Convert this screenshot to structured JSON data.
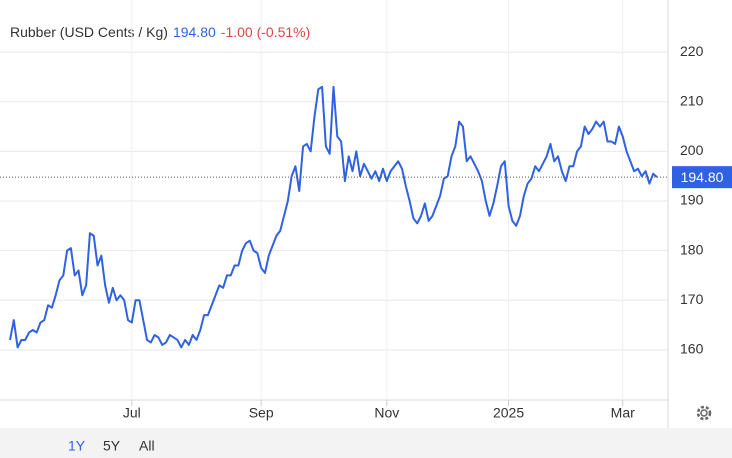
{
  "chart_data": {
    "type": "line",
    "title": "Rubber (USD Cents / Kg)",
    "price": "194.80",
    "change": "-1.00 (-0.51%)",
    "series": [
      {
        "name": "Rubber",
        "color": "#2f62e3",
        "values": [
          162,
          166,
          160.5,
          162,
          162,
          163.5,
          164,
          163.5,
          165.5,
          166,
          169,
          168.5,
          171,
          174,
          175,
          180,
          180.5,
          175,
          176,
          171,
          173,
          183.5,
          183,
          177,
          179,
          173,
          169.5,
          172.5,
          170,
          171,
          170,
          166,
          165.5,
          170,
          170,
          166,
          162,
          161.5,
          163,
          162.5,
          161,
          161.5,
          163,
          162.5,
          162,
          160.5,
          162,
          161,
          163,
          162,
          164,
          167,
          167,
          169,
          171,
          173,
          172.5,
          175,
          175,
          177,
          177,
          180,
          181.5,
          182,
          180,
          179.5,
          176.5,
          175.5,
          179,
          181,
          183,
          184,
          187,
          190,
          195,
          197,
          192,
          201,
          201.5,
          200,
          207,
          212.5,
          213,
          201,
          199.5,
          213,
          203,
          202,
          194,
          199,
          196,
          200,
          195,
          197.5,
          196,
          194.5,
          196,
          194,
          196.5,
          194,
          196,
          197,
          198,
          196.5,
          193,
          190,
          186.5,
          185.5,
          187,
          189.5,
          186,
          187,
          189,
          191,
          194.5,
          195,
          199,
          201,
          206,
          205,
          198,
          199,
          197.5,
          196,
          194,
          190,
          187,
          189.5,
          193,
          197,
          198,
          189,
          186,
          185,
          187,
          191,
          193.5,
          194.5,
          197,
          196,
          197.5,
          199,
          201.5,
          198,
          199,
          196,
          194,
          197,
          197,
          200,
          201,
          205,
          203.5,
          204.5,
          206,
          205,
          206,
          202,
          202,
          201.5,
          205,
          203,
          200,
          198,
          196,
          196.5,
          195,
          196,
          193.5,
          195.5,
          194.8
        ]
      }
    ],
    "xlim": [
      0,
      170
    ],
    "xticks": [
      {
        "value": 32,
        "label": "Jul"
      },
      {
        "value": 66,
        "label": "Sep"
      },
      {
        "value": 99,
        "label": "Nov"
      },
      {
        "value": 131,
        "label": "2025"
      },
      {
        "value": 161,
        "label": "Mar"
      }
    ],
    "ylim": [
      149.9,
      230.5
    ],
    "yticks": [
      160,
      170,
      180,
      190,
      200,
      210,
      220
    ],
    "grid": true,
    "range_buttons": [
      "1Y",
      "5Y",
      "All"
    ]
  }
}
